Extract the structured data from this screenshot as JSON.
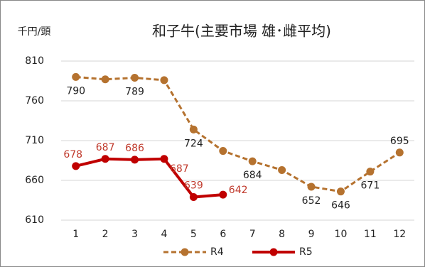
{
  "chart_data": {
    "type": "line",
    "title": "和子牛(主要市場 雄･雌平均)",
    "y_label": "千円/頭",
    "categories": [
      "1",
      "2",
      "3",
      "4",
      "5",
      "6",
      "7",
      "8",
      "9",
      "10",
      "11",
      "12"
    ],
    "ylim": [
      610,
      810
    ],
    "yticks": [
      610,
      660,
      710,
      760,
      810
    ],
    "grid": true,
    "series": [
      {
        "name": "R4",
        "color": "#b5722f",
        "line_style": "dashed",
        "label_color": "#222222",
        "values": [
          790,
          787,
          789,
          786,
          724,
          697,
          684,
          673,
          652,
          646,
          671,
          695
        ],
        "value_labels": [
          790,
          null,
          789,
          null,
          724,
          null,
          684,
          null,
          652,
          646,
          671,
          695
        ]
      },
      {
        "name": "R5",
        "color": "#c00000",
        "line_style": "solid",
        "label_color": "#c0392b",
        "values": [
          678,
          687,
          686,
          687,
          639,
          642,
          null,
          null,
          null,
          null,
          null,
          null
        ],
        "value_labels": [
          678,
          687,
          686,
          687,
          639,
          642,
          null,
          null,
          null,
          null,
          null,
          null
        ]
      }
    ]
  }
}
